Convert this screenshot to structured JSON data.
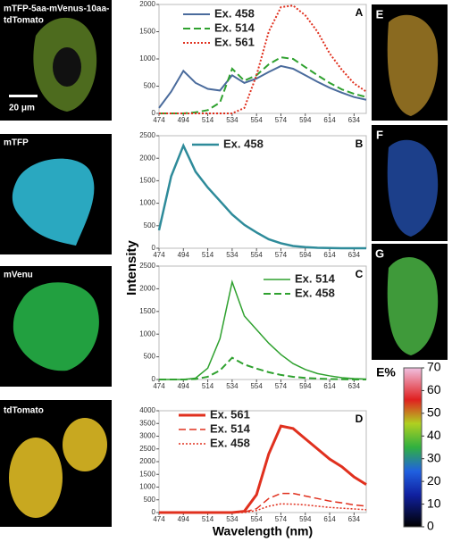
{
  "chart_data": [
    {
      "type": "line",
      "panel": "A",
      "x": [
        474,
        484,
        494,
        504,
        514,
        524,
        534,
        544,
        554,
        564,
        574,
        584,
        594,
        604,
        614,
        624,
        634,
        644
      ],
      "series": [
        {
          "name": "Ex. 458",
          "color": "#4a6b9c",
          "style": "solid",
          "line_width": 2,
          "values": [
            100,
            400,
            780,
            560,
            450,
            420,
            700,
            560,
            640,
            760,
            870,
            820,
            700,
            580,
            470,
            380,
            300,
            250
          ]
        },
        {
          "name": "Ex. 514",
          "color": "#2fa12f",
          "style": "dashed",
          "line_width": 2,
          "values": [
            0,
            0,
            0,
            20,
            60,
            200,
            820,
            600,
            700,
            900,
            1030,
            1000,
            850,
            700,
            560,
            440,
            360,
            300
          ]
        },
        {
          "name": "Ex. 561",
          "color": "#e0301e",
          "style": "dotted",
          "line_width": 2,
          "values": [
            0,
            0,
            0,
            0,
            0,
            0,
            0,
            100,
            700,
            1500,
            1950,
            1980,
            1800,
            1500,
            1100,
            800,
            550,
            400
          ]
        }
      ],
      "xlim": [
        474,
        644
      ],
      "xticks": [
        474,
        494,
        514,
        534,
        554,
        574,
        594,
        614,
        634
      ],
      "ylim": [
        0,
        2000
      ],
      "yticks": [
        0,
        500,
        1000,
        1500,
        2000
      ]
    },
    {
      "type": "line",
      "panel": "B",
      "x": [
        474,
        484,
        494,
        504,
        514,
        524,
        534,
        544,
        554,
        564,
        574,
        584,
        594,
        604,
        614,
        624,
        634,
        644
      ],
      "series": [
        {
          "name": "Ex. 458",
          "color": "#2e8b9a",
          "style": "solid",
          "line_width": 2.5,
          "values": [
            400,
            1600,
            2280,
            1700,
            1350,
            1050,
            750,
            520,
            350,
            200,
            110,
            50,
            25,
            10,
            5,
            0,
            0,
            0
          ]
        }
      ],
      "xlim": [
        474,
        644
      ],
      "xticks": [
        474,
        494,
        514,
        534,
        554,
        574,
        594,
        614,
        634
      ],
      "ylim": [
        0,
        2500
      ],
      "yticks": [
        0,
        500,
        1000,
        1500,
        2000,
        2500
      ]
    },
    {
      "type": "line",
      "panel": "C",
      "x": [
        474,
        484,
        494,
        504,
        514,
        524,
        534,
        544,
        554,
        564,
        574,
        584,
        594,
        604,
        614,
        624,
        634,
        644
      ],
      "series": [
        {
          "name": "Ex. 514",
          "color": "#2fa12f",
          "style": "solid",
          "line_width": 1.5,
          "values": [
            0,
            0,
            0,
            30,
            250,
            900,
            2150,
            1400,
            1100,
            800,
            550,
            350,
            220,
            130,
            80,
            40,
            20,
            10
          ]
        },
        {
          "name": "Ex. 458",
          "color": "#2fa12f",
          "style": "dashed",
          "line_width": 2,
          "values": [
            0,
            0,
            0,
            10,
            60,
            200,
            480,
            330,
            240,
            160,
            100,
            60,
            35,
            20,
            10,
            5,
            0,
            0
          ]
        }
      ],
      "xlim": [
        474,
        644
      ],
      "xticks": [
        474,
        494,
        514,
        534,
        554,
        574,
        594,
        614,
        634
      ],
      "ylim": [
        0,
        2500
      ],
      "yticks": [
        0,
        500,
        1000,
        1500,
        2000,
        2500
      ]
    },
    {
      "type": "line",
      "panel": "D",
      "x": [
        474,
        484,
        494,
        504,
        514,
        524,
        534,
        544,
        554,
        564,
        574,
        584,
        594,
        604,
        614,
        624,
        634,
        644
      ],
      "series": [
        {
          "name": "Ex. 561",
          "color": "#e0301e",
          "style": "solid",
          "line_width": 3,
          "values": [
            0,
            0,
            0,
            0,
            0,
            0,
            0,
            50,
            700,
            2300,
            3400,
            3300,
            2900,
            2500,
            2100,
            1800,
            1400,
            1100
          ]
        },
        {
          "name": "Ex. 514",
          "color": "#e0301e",
          "style": "dashed",
          "line_width": 1.5,
          "values": [
            0,
            0,
            0,
            0,
            0,
            0,
            0,
            20,
            150,
            550,
            750,
            750,
            650,
            550,
            450,
            380,
            300,
            250
          ]
        },
        {
          "name": "Ex. 458",
          "color": "#e0301e",
          "style": "dotted",
          "line_width": 1.5,
          "values": [
            0,
            0,
            0,
            0,
            0,
            0,
            0,
            0,
            80,
            250,
            340,
            330,
            300,
            250,
            200,
            170,
            140,
            110
          ]
        }
      ],
      "xlim": [
        474,
        644
      ],
      "xticks": [
        474,
        494,
        514,
        534,
        554,
        574,
        594,
        614,
        634
      ],
      "ylim": [
        0,
        4000
      ],
      "yticks": [
        0,
        500,
        1000,
        1500,
        2000,
        2500,
        3000,
        3500,
        4000
      ]
    }
  ],
  "axis_labels": {
    "y": "Intensity",
    "x": "Wavelength (nm)"
  },
  "images": [
    {
      "label_lines": [
        "mTFP-5aa-mVenus-10aa-",
        "tdTomato"
      ],
      "scale_bar": "20 μm"
    },
    {
      "label_lines": [
        "mTFP"
      ]
    },
    {
      "label_lines": [
        "mVenu"
      ]
    },
    {
      "label_lines": [
        "tdTomato"
      ]
    }
  ],
  "side_images": [
    "E",
    "F",
    "G"
  ],
  "colorbar": {
    "label": "E%",
    "lim": [
      0,
      70
    ],
    "ticks": [
      0,
      10,
      20,
      30,
      40,
      50,
      60,
      70
    ]
  }
}
